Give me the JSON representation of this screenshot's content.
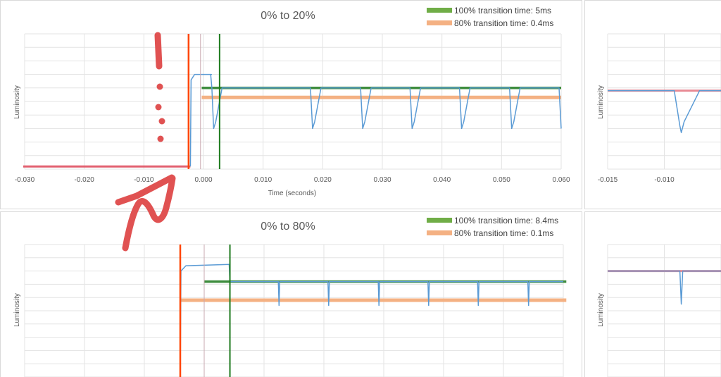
{
  "panels": [
    {
      "title": "0% to 20%",
      "ylabel": "Luminosity",
      "xlabel": "Time (seconds)",
      "legend": [
        {
          "label": "100% transition time: 5ms",
          "color": "#70ad47"
        },
        {
          "label": "80% transition time: 0.4ms",
          "color": "#f4b183"
        }
      ]
    },
    {
      "title": "0% to 80%",
      "ylabel": "Luminosity",
      "legend": [
        {
          "label": "100% transition time: 8.4ms",
          "color": "#70ad47"
        },
        {
          "label": "80% transition time: 0.1ms",
          "color": "#f4b183"
        }
      ]
    },
    {
      "ylabel": "Luminosity"
    },
    {
      "ylabel": "Luminosity"
    }
  ],
  "chart_data": [
    {
      "type": "line",
      "title": "0% to 20%",
      "xlabel": "Time (seconds)",
      "ylabel": "Luminosity",
      "xlim": [
        -0.03,
        0.06
      ],
      "x_ticks": [
        "-0.030",
        "-0.020",
        "-0.010",
        "0.000",
        "0.010",
        "0.020",
        "0.030",
        "0.040",
        "0.050",
        "0.060"
      ],
      "grid": true,
      "legend_position": "top-right",
      "baseline_level": 0.02,
      "step_time": -0.0022,
      "overshoot_level": 0.7,
      "settled_level": 0.6,
      "dip_level": 0.3,
      "dip_times": [
        0.0017,
        0.0183,
        0.0267,
        0.035,
        0.0433,
        0.0517,
        0.06
      ],
      "markers": {
        "orange_x": -0.0025,
        "green_x": 0.0027,
        "gray_x": -0.0005
      },
      "series": [
        {
          "name": "100% transition time: 5ms",
          "color": "#70ad47",
          "x": [
            -0.0003,
            0.06
          ],
          "y": [
            0.6,
            0.6
          ]
        },
        {
          "name": "80% transition time: 0.4ms",
          "color": "#f4b183",
          "x": [
            -0.0003,
            0.06
          ],
          "y": [
            0.53,
            0.53
          ]
        }
      ]
    },
    {
      "type": "line",
      "title": "0% to 80%",
      "ylabel": "Luminosity",
      "xlim": [
        -0.03,
        0.06
      ],
      "grid": true,
      "legend_position": "top-right",
      "step_time": -0.004,
      "overshoot_level": 0.84,
      "settled_level": 0.72,
      "dip_level": 0.54,
      "dip_times": [
        0.0125,
        0.0208,
        0.0292,
        0.0375,
        0.0458,
        0.0542
      ],
      "markers": {
        "orange_x": -0.004,
        "green_x": 0.0043,
        "gray_x": 0.0
      },
      "series": [
        {
          "name": "100% transition time: 8.4ms",
          "color": "#70ad47",
          "x": [
            0.0,
            0.0605
          ],
          "y": [
            0.72,
            0.72
          ]
        },
        {
          "name": "80% transition time: 0.1ms",
          "color": "#f4b183",
          "x": [
            -0.004,
            0.0605
          ],
          "y": [
            0.58,
            0.58
          ]
        }
      ]
    },
    {
      "type": "line",
      "ylabel": "Luminosity",
      "xlim": [
        -0.015,
        -0.005
      ],
      "x_ticks": [
        "-0.015",
        "-0.010"
      ],
      "grid": true,
      "level": 0.58,
      "dip_level": 0.27,
      "dip_time": -0.0085
    },
    {
      "type": "line",
      "ylabel": "Luminosity",
      "xlim": [
        -0.015,
        -0.005
      ],
      "grid": true,
      "level": 0.8,
      "dip_level": 0.55,
      "dip_time": -0.0085
    }
  ],
  "annotation": {
    "color": "#e05252",
    "description": "hand-drawn arrow"
  }
}
